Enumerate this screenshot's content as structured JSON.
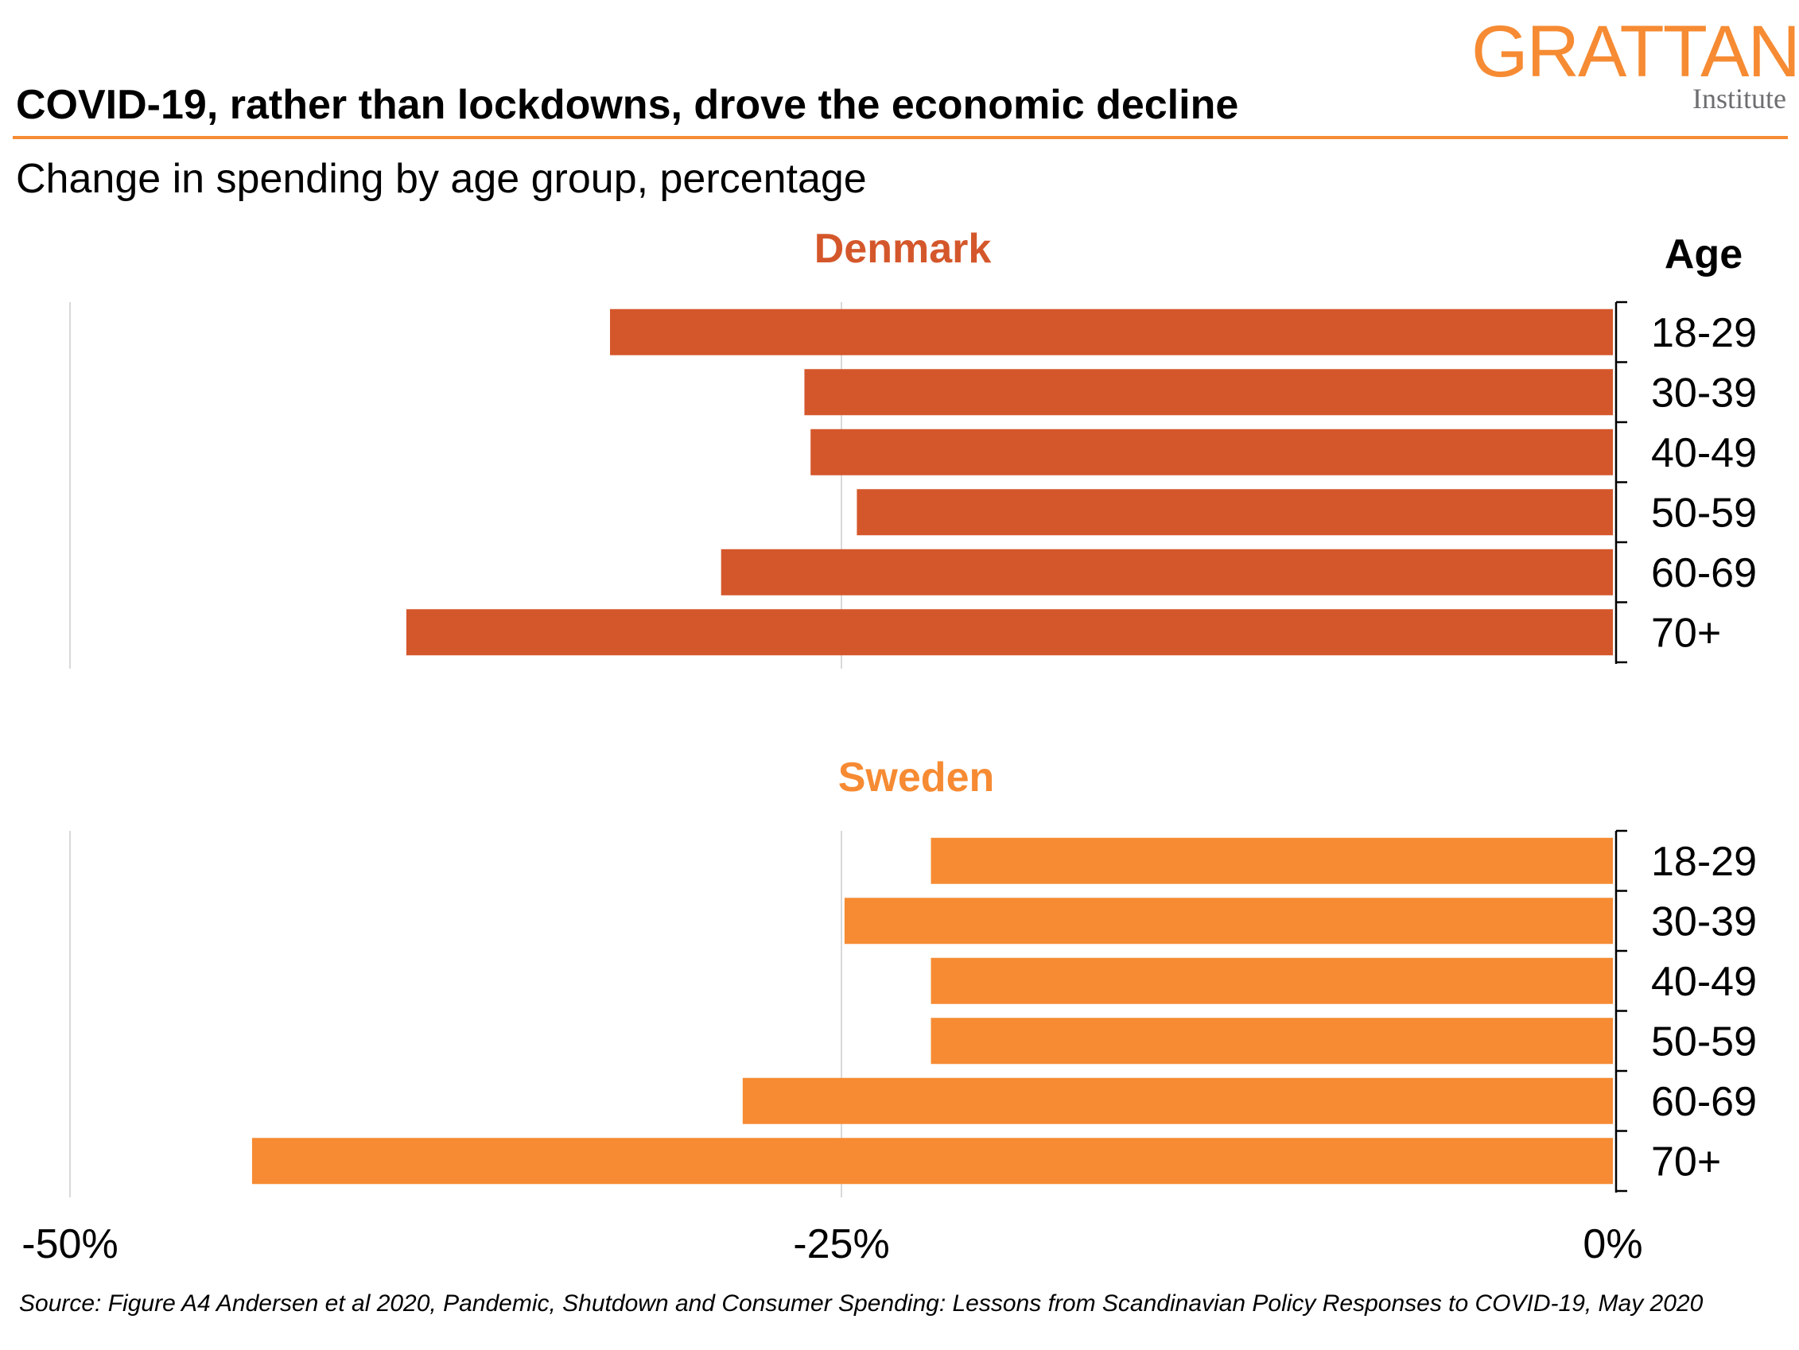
{
  "header": {
    "logo_word": "GRATTAN",
    "logo_sub": "Institute",
    "title": "COVID-19, rather than lockdowns, drove the economic decline",
    "subtitle": "Change in spending by age group, percentage"
  },
  "chart_data": {
    "type": "bar",
    "orientation": "horizontal",
    "age_label": "Age",
    "categories": [
      "18-29",
      "30-39",
      "40-49",
      "50-59",
      "60-69",
      "70+"
    ],
    "xlim": [
      -50,
      0
    ],
    "x_ticks": [
      {
        "value": -50,
        "label": "-50%"
      },
      {
        "value": -25,
        "label": "-25%"
      },
      {
        "value": 0,
        "label": "0%"
      }
    ],
    "grid": true,
    "panels": [
      {
        "name": "Denmark",
        "color": "#d4572b",
        "values": [
          -32.5,
          -26.2,
          -26.0,
          -24.5,
          -28.9,
          -39.1
        ]
      },
      {
        "name": "Sweden",
        "color": "#f68b33",
        "values": [
          -22.1,
          -24.9,
          -22.1,
          -22.1,
          -28.2,
          -44.1
        ]
      }
    ]
  },
  "footer": {
    "source": "Source: Figure A4 Andersen et al 2020, Pandemic, Shutdown and Consumer Spending: Lessons from Scandinavian Policy Responses to COVID-19, May 2020"
  }
}
